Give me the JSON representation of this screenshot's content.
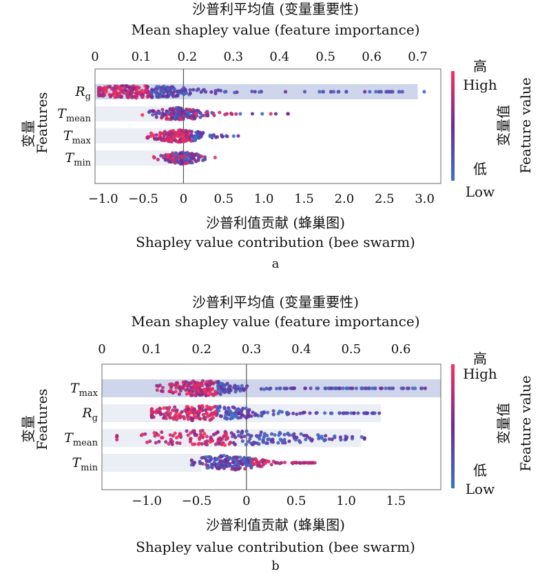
{
  "chart_data": [
    {
      "type": "scatter",
      "subtype": "shap-beeswarm-with-importance-bars",
      "panel_label": "a",
      "top_axis": {
        "title_cn": "沙普利平均值 (变量重要性)",
        "title_en": "Mean shapley value (feature importance)",
        "range": [
          0,
          0.75
        ],
        "ticks": [
          0,
          0.1,
          0.2,
          0.3,
          0.4,
          0.5,
          0.6,
          0.7
        ],
        "tick_labels": [
          "0",
          "0.1",
          "0.2",
          "0.3",
          "0.4",
          "0.5",
          "0.6",
          "0.7"
        ]
      },
      "bottom_axis": {
        "title_cn": "沙普利值贡献 (蜂巢图)",
        "title_en": "Shapley value contribution (bee swarm)",
        "range": [
          -1.1,
          3.2
        ],
        "ticks": [
          -1.0,
          -0.5,
          0,
          0.5,
          1.0,
          1.5,
          2.0,
          2.5,
          3.0
        ],
        "tick_labels": [
          "−1.0",
          "−0.5",
          "0",
          "0.5",
          "1.0",
          "1.5",
          "2.0",
          "2.5",
          "3.0"
        ]
      },
      "y_label_cn": "变量",
      "y_label_en": "Features",
      "features": [
        {
          "label": "R",
          "sub": "g",
          "importance": 0.7,
          "swarm": {
            "min": -1.05,
            "max": 3.0,
            "center": -0.55,
            "spread": 0.38,
            "tail_to": 3.0,
            "points": 260,
            "tail_points": 40,
            "high_side": "low"
          }
        },
        {
          "label": "T",
          "sub": "mean",
          "importance": 0.19,
          "swarm": {
            "min": -0.6,
            "max": 1.35,
            "center": -0.05,
            "spread": 0.18,
            "tail_to": 1.35,
            "points": 170,
            "tail_points": 14,
            "high_side": "mixed"
          }
        },
        {
          "label": "T",
          "sub": "max",
          "importance": 0.18,
          "swarm": {
            "min": -0.45,
            "max": 0.75,
            "center": -0.05,
            "spread": 0.17,
            "tail_to": 0.75,
            "points": 170,
            "tail_points": 10,
            "high_side": "low"
          }
        },
        {
          "label": "T",
          "sub": "min",
          "importance": 0.16,
          "swarm": {
            "min": -0.45,
            "max": 0.4,
            "center": -0.02,
            "spread": 0.12,
            "tail_to": 0.4,
            "points": 140,
            "tail_points": 6,
            "high_side": "mixed"
          }
        }
      ],
      "colorbar": {
        "label_cn": "变量值",
        "label_en": "Feature value",
        "high_cn": "高",
        "high_en": "High",
        "low_cn": "低",
        "low_en": "Low",
        "high_color": "#ff2f55",
        "mid_color": "#6a2a9a",
        "low_color": "#3b72c8"
      }
    },
    {
      "type": "scatter",
      "subtype": "shap-beeswarm-with-importance-bars",
      "panel_label": "b",
      "top_axis": {
        "title_cn": "沙普利平均值 (变量重要性)",
        "title_en": "Mean shapley value (feature importance)",
        "range": [
          0,
          0.68
        ],
        "ticks": [
          0,
          0.1,
          0.2,
          0.3,
          0.4,
          0.5,
          0.6
        ],
        "tick_labels": [
          "0",
          "0.1",
          "0.2",
          "0.3",
          "0.4",
          "0.5",
          "0.6"
        ]
      },
      "bottom_axis": {
        "title_cn": "沙普利值贡献 (蜂巢图)",
        "title_en": "Shapley value contribution (bee swarm)",
        "range": [
          -1.45,
          1.95
        ],
        "ticks": [
          -1.0,
          -0.5,
          0,
          0.5,
          1.0,
          1.5
        ],
        "tick_labels": [
          "−1.0",
          "−0.5",
          "0",
          "0.5",
          "1.0",
          "1.5"
        ]
      },
      "y_label_cn": "变量",
      "y_label_en": "Features",
      "features": [
        {
          "label": "T",
          "sub": "max",
          "importance": 0.68,
          "swarm": {
            "min": -1.3,
            "max": 1.8,
            "center": -0.45,
            "spread": 0.2,
            "tail_to": 1.8,
            "points": 200,
            "tail_points": 70,
            "high_side": "low"
          }
        },
        {
          "label": "R",
          "sub": "g",
          "importance": 0.56,
          "swarm": {
            "min": -0.95,
            "max": 1.4,
            "center": -0.45,
            "spread": 0.3,
            "tail_to": 1.4,
            "points": 210,
            "tail_points": 60,
            "high_side": "low"
          }
        },
        {
          "label": "T",
          "sub": "mean",
          "importance": 0.52,
          "swarm": {
            "min": -1.3,
            "max": 1.2,
            "center": -0.3,
            "spread": 0.5,
            "tail_to": 1.2,
            "points": 170,
            "tail_points": 40,
            "high_side": "low"
          }
        },
        {
          "label": "T",
          "sub": "min",
          "importance": 0.2,
          "swarm": {
            "min": -0.55,
            "max": 0.7,
            "center": -0.2,
            "spread": 0.18,
            "tail_to": 0.7,
            "points": 170,
            "tail_points": 45,
            "high_side": "high"
          }
        }
      ],
      "colorbar": {
        "label_cn": "变量值",
        "label_en": "Feature value",
        "high_cn": "高",
        "high_en": "High",
        "low_cn": "低",
        "low_en": "Low",
        "high_color": "#ff2f55",
        "mid_color": "#6a2a9a",
        "low_color": "#3b72c8"
      }
    }
  ]
}
